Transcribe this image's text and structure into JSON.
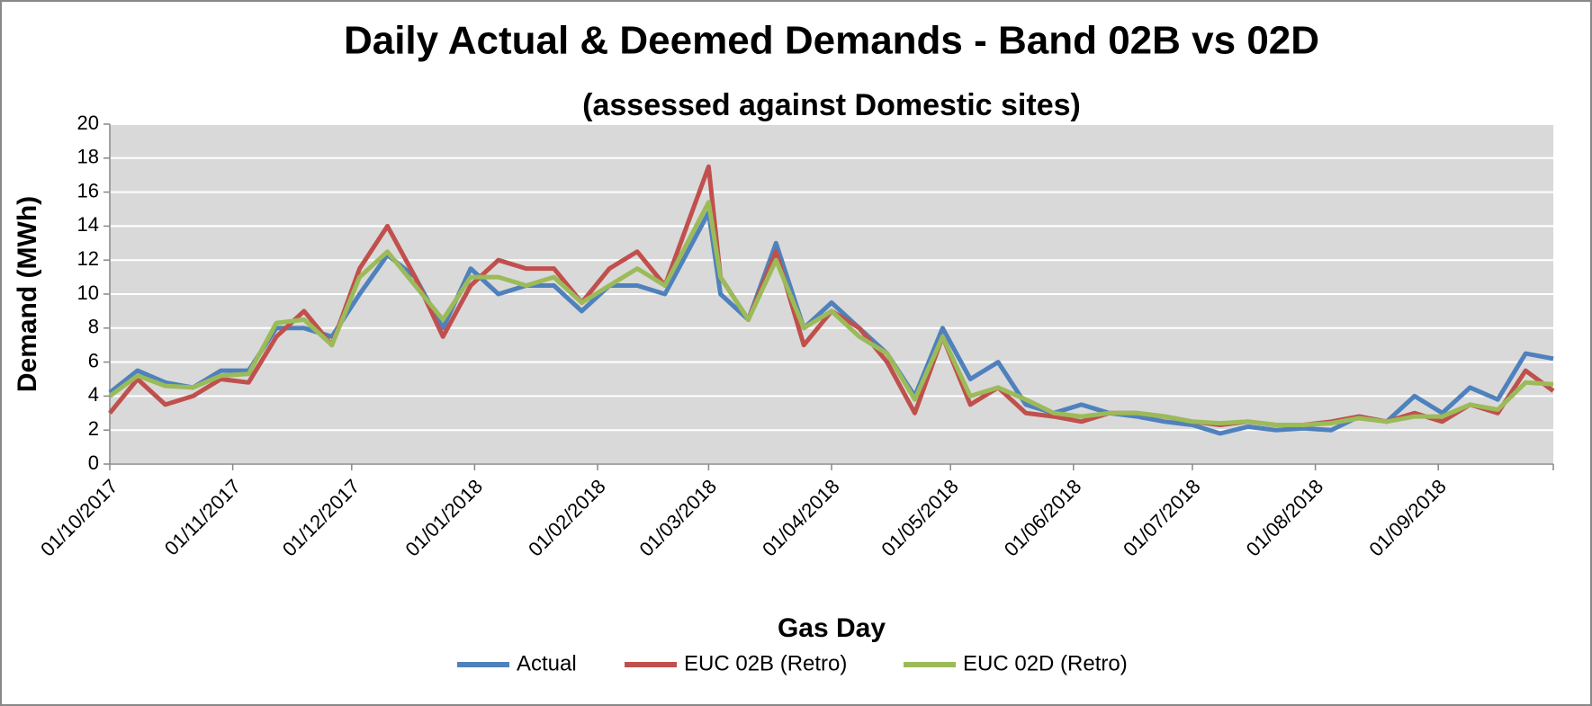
{
  "chart_data": {
    "type": "line",
    "title": "Daily Actual & Deemed Demands - Band 02B vs 02D",
    "subtitle": "(assessed against Domestic sites)",
    "x_label": "Gas Day",
    "y_label": "Demand (MWh)",
    "x": [
      "01/10/2017",
      "08/10/2017",
      "15/10/2017",
      "22/10/2017",
      "29/10/2017",
      "05/11/2017",
      "12/11/2017",
      "19/11/2017",
      "26/11/2017",
      "03/12/2017",
      "10/12/2017",
      "17/12/2017",
      "24/12/2017",
      "31/12/2017",
      "07/01/2018",
      "14/01/2018",
      "21/01/2018",
      "28/01/2018",
      "04/02/2018",
      "11/02/2018",
      "18/02/2018",
      "01/03/2018",
      "04/03/2018",
      "11/03/2018",
      "18/03/2018",
      "25/03/2018",
      "01/04/2018",
      "08/04/2018",
      "15/04/2018",
      "22/04/2018",
      "29/04/2018",
      "06/05/2018",
      "13/05/2018",
      "20/05/2018",
      "27/05/2018",
      "03/06/2018",
      "10/06/2018",
      "17/06/2018",
      "24/06/2018",
      "01/07/2018",
      "08/07/2018",
      "15/07/2018",
      "22/07/2018",
      "29/07/2018",
      "05/08/2018",
      "12/08/2018",
      "19/08/2018",
      "26/08/2018",
      "02/09/2018",
      "09/09/2018",
      "16/09/2018",
      "23/09/2018",
      "30/09/2018"
    ],
    "series": [
      {
        "name": "Actual",
        "color": "#4f81bd",
        "values": [
          4.2,
          5.5,
          4.8,
          4.5,
          5.5,
          5.5,
          8.0,
          8.0,
          7.5,
          10.0,
          12.3,
          11.0,
          8.0,
          11.5,
          10.0,
          10.5,
          10.5,
          9.0,
          10.5,
          10.5,
          10.0,
          14.8,
          10.0,
          8.5,
          13.0,
          8.0,
          9.5,
          8.0,
          6.5,
          4.0,
          8.0,
          5.0,
          6.0,
          3.5,
          3.0,
          3.5,
          3.0,
          2.8,
          2.5,
          2.3,
          1.8,
          2.2,
          2.0,
          2.1,
          2.0,
          2.8,
          2.5,
          4.0,
          3.0,
          4.5,
          3.8,
          6.5,
          6.2
        ]
      },
      {
        "name": "EUC 02B (Retro)",
        "color": "#c0504d",
        "values": [
          3.0,
          5.0,
          3.5,
          4.0,
          5.0,
          4.8,
          7.5,
          9.0,
          7.0,
          11.5,
          14.0,
          11.0,
          7.5,
          10.5,
          12.0,
          11.5,
          11.5,
          9.5,
          11.5,
          12.5,
          10.5,
          17.5,
          11.0,
          8.5,
          12.5,
          7.0,
          9.0,
          8.0,
          6.0,
          3.0,
          7.5,
          3.5,
          4.5,
          3.0,
          2.8,
          2.5,
          3.0,
          3.0,
          2.8,
          2.5,
          2.3,
          2.5,
          2.3,
          2.3,
          2.5,
          2.8,
          2.5,
          3.0,
          2.5,
          3.5,
          3.0,
          5.5,
          4.3
        ]
      },
      {
        "name": "EUC 02D (Retro)",
        "color": "#9bbb59",
        "values": [
          4.0,
          5.2,
          4.6,
          4.5,
          5.2,
          5.3,
          8.3,
          8.5,
          7.0,
          11.0,
          12.5,
          10.5,
          8.5,
          11.0,
          11.0,
          10.5,
          11.0,
          9.5,
          10.5,
          11.5,
          10.5,
          15.4,
          11.0,
          8.5,
          12.0,
          8.0,
          9.0,
          7.5,
          6.5,
          3.8,
          7.5,
          4.0,
          4.5,
          3.8,
          3.0,
          2.8,
          3.0,
          3.0,
          2.8,
          2.5,
          2.4,
          2.5,
          2.3,
          2.3,
          2.4,
          2.7,
          2.5,
          2.8,
          2.8,
          3.5,
          3.2,
          4.8,
          4.7
        ]
      }
    ],
    "xlim": [
      "01/10/2017",
      "30/09/2018"
    ],
    "xticks": [
      "01/10/2017",
      "01/11/2017",
      "01/12/2017",
      "01/01/2018",
      "01/02/2018",
      "01/03/2018",
      "01/04/2018",
      "01/05/2018",
      "01/06/2018",
      "01/07/2018",
      "01/08/2018",
      "01/09/2018"
    ],
    "ylim": [
      0,
      20
    ],
    "yticks": [
      0,
      2,
      4,
      6,
      8,
      10,
      12,
      14,
      16,
      18,
      20
    ],
    "grid": true,
    "legend": "bottom"
  }
}
